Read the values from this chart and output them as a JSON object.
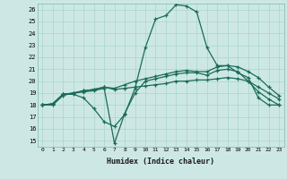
{
  "xlabel": "Humidex (Indice chaleur)",
  "bg_color": "#cde8e4",
  "grid_color": "#a8d4cc",
  "line_color": "#1a6b5a",
  "xlim": [
    -0.5,
    23.5
  ],
  "ylim": [
    14.5,
    26.5
  ],
  "xticks": [
    0,
    1,
    2,
    3,
    4,
    5,
    6,
    7,
    8,
    9,
    10,
    11,
    12,
    13,
    14,
    15,
    16,
    17,
    18,
    19,
    20,
    21,
    22,
    23
  ],
  "yticks": [
    15,
    16,
    17,
    18,
    19,
    20,
    21,
    22,
    23,
    24,
    25,
    26
  ],
  "series": [
    [
      18.0,
      18.1,
      18.9,
      18.9,
      18.6,
      17.7,
      16.6,
      16.2,
      17.2,
      19.4,
      22.8,
      25.2,
      25.5,
      26.4,
      26.3,
      25.8,
      22.8,
      21.3,
      21.3,
      20.7,
      20.3,
      18.6,
      18.0,
      18.0
    ],
    [
      18.0,
      18.1,
      18.9,
      19.0,
      19.2,
      19.3,
      19.5,
      19.4,
      19.7,
      20.0,
      20.2,
      20.4,
      20.6,
      20.8,
      20.9,
      20.8,
      20.8,
      21.2,
      21.3,
      21.2,
      20.8,
      20.3,
      19.5,
      18.8
    ],
    [
      18.0,
      18.1,
      18.9,
      19.0,
      19.2,
      19.3,
      19.5,
      19.3,
      19.4,
      19.5,
      19.6,
      19.7,
      19.8,
      20.0,
      20.0,
      20.1,
      20.1,
      20.2,
      20.3,
      20.2,
      20.0,
      19.5,
      19.0,
      18.5
    ],
    [
      18.0,
      18.0,
      18.8,
      19.0,
      19.1,
      19.2,
      19.4,
      14.8,
      17.3,
      19.0,
      20.0,
      20.2,
      20.4,
      20.6,
      20.7,
      20.7,
      20.5,
      20.9,
      21.0,
      20.8,
      20.0,
      19.1,
      18.5,
      18.0
    ]
  ]
}
